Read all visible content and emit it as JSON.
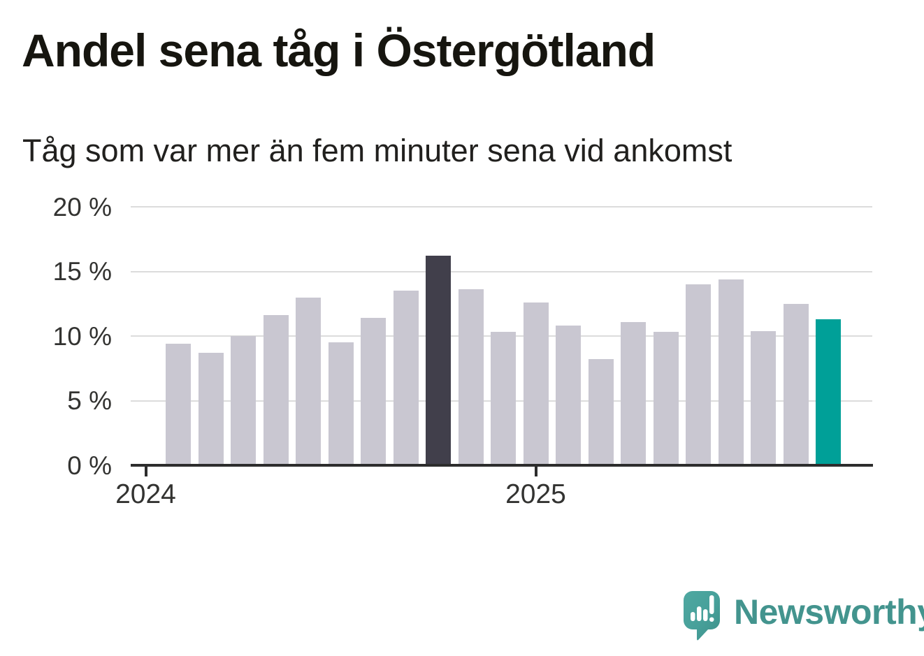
{
  "header": {
    "title": "Andel sena tåg i Östergötland",
    "subtitle": "Tåg som var mer än fem minuter sena vid ankomst"
  },
  "chart_data": {
    "type": "bar",
    "title": "Andel sena tåg i Östergötland",
    "subtitle": "Tåg som var mer än fem minuter sena vid ankomst",
    "unit": "%",
    "ylim": [
      0,
      20
    ],
    "grid": true,
    "legend": "none",
    "y_ticks": [
      {
        "value": 20,
        "label": "20 %"
      },
      {
        "value": 15,
        "label": "15 %"
      },
      {
        "value": 10,
        "label": "10 %"
      },
      {
        "value": 5,
        "label": "5 %"
      },
      {
        "value": 0,
        "label": "0 %"
      }
    ],
    "x_ticks": [
      {
        "label": "2024",
        "slot": -1
      },
      {
        "label": "2025",
        "slot": 11
      }
    ],
    "values": [
      9.4,
      8.7,
      10.0,
      11.6,
      13.0,
      9.5,
      11.4,
      13.5,
      16.2,
      13.6,
      10.3,
      12.6,
      10.8,
      8.2,
      11.1,
      10.3,
      14.0,
      14.4,
      10.4,
      12.5,
      11.3
    ],
    "highlighted_bars": {
      "dark_index": 8,
      "accent_index": 20
    }
  },
  "colors": {
    "bar_default": "#c9c7d1",
    "bar_dark": "#413f4b",
    "bar_accent": "#00a098",
    "gridline": "#dcdcdc",
    "axis": "#2d2d2d",
    "brand_teal": "#43948e",
    "logo_bubble": "#47a09a"
  },
  "footer": {
    "brand_name": "Newsworthy",
    "logo_icon": "speech-bubble-bar-chart-icon"
  }
}
